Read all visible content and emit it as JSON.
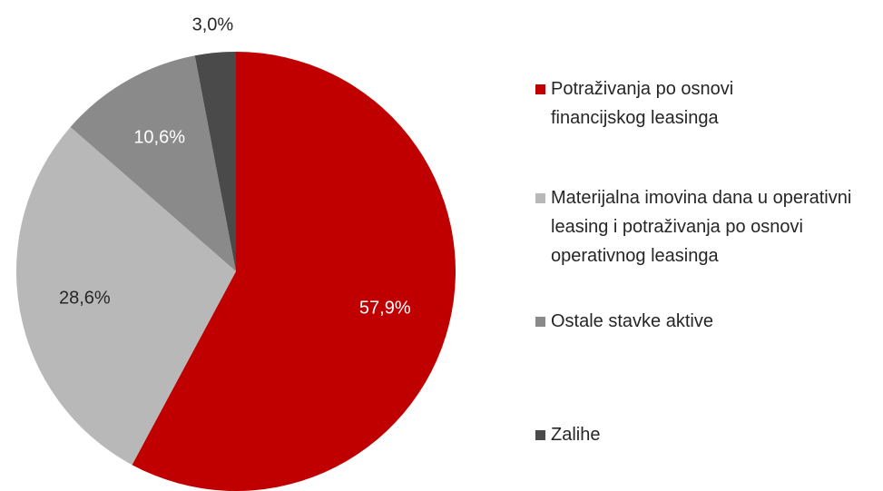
{
  "chart_data": {
    "type": "pie",
    "categories": [
      "Potraživanja po osnovi financijskog leasinga",
      "Materijalna imovina dana u operativni leasing i potraživanja po osnovi operativnog leasinga",
      "Ostale stavke aktive",
      "Zalihe"
    ],
    "values": [
      57.9,
      28.6,
      10.6,
      3.0
    ],
    "value_labels": [
      "57,9%",
      "28,6%",
      "10,6%",
      "3,0%"
    ],
    "colors": [
      "#c00000",
      "#b8b8b8",
      "#8a8a8a",
      "#4a4a4a"
    ],
    "legend": "right"
  }
}
